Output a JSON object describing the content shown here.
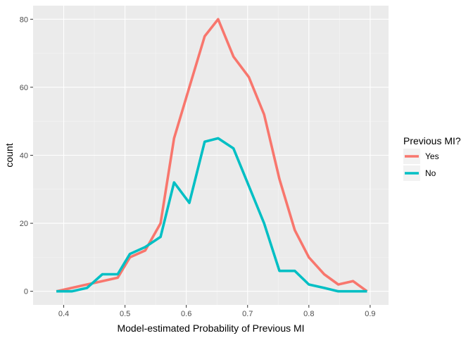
{
  "chart_data": {
    "type": "line",
    "title": "",
    "xlabel": "Model-estimated Probability of Previous MI",
    "ylabel": "count",
    "xlim": [
      0.35,
      0.93
    ],
    "ylim": [
      -4,
      84
    ],
    "x_ticks": [
      0.4,
      0.5,
      0.6,
      0.7,
      0.8,
      0.9
    ],
    "y_ticks": [
      0,
      20,
      40,
      60,
      80
    ],
    "grid": true,
    "legend": {
      "title": "Previous MI?",
      "placement": "right"
    },
    "series": [
      {
        "name": "Yes",
        "color": "#F8766D",
        "x": [
          0.388,
          0.413,
          0.438,
          0.463,
          0.488,
          0.508,
          0.533,
          0.558,
          0.58,
          0.605,
          0.63,
          0.652,
          0.677,
          0.702,
          0.727,
          0.752,
          0.777,
          0.8,
          0.825,
          0.848,
          0.872,
          0.895
        ],
        "y": [
          0,
          1,
          2,
          3,
          4,
          10,
          12,
          20,
          45,
          60,
          75,
          80,
          69,
          63,
          52,
          33,
          18,
          10,
          5,
          2,
          3,
          0
        ]
      },
      {
        "name": "No",
        "color": "#00BFC4",
        "x": [
          0.388,
          0.413,
          0.438,
          0.463,
          0.488,
          0.508,
          0.533,
          0.558,
          0.58,
          0.605,
          0.63,
          0.652,
          0.677,
          0.702,
          0.727,
          0.752,
          0.777,
          0.8,
          0.825,
          0.848,
          0.872,
          0.895
        ],
        "y": [
          0,
          0,
          1,
          5,
          5,
          11,
          13,
          16,
          32,
          26,
          44,
          45,
          42,
          31,
          20,
          6,
          6,
          2,
          1,
          0,
          0,
          0
        ]
      }
    ]
  }
}
